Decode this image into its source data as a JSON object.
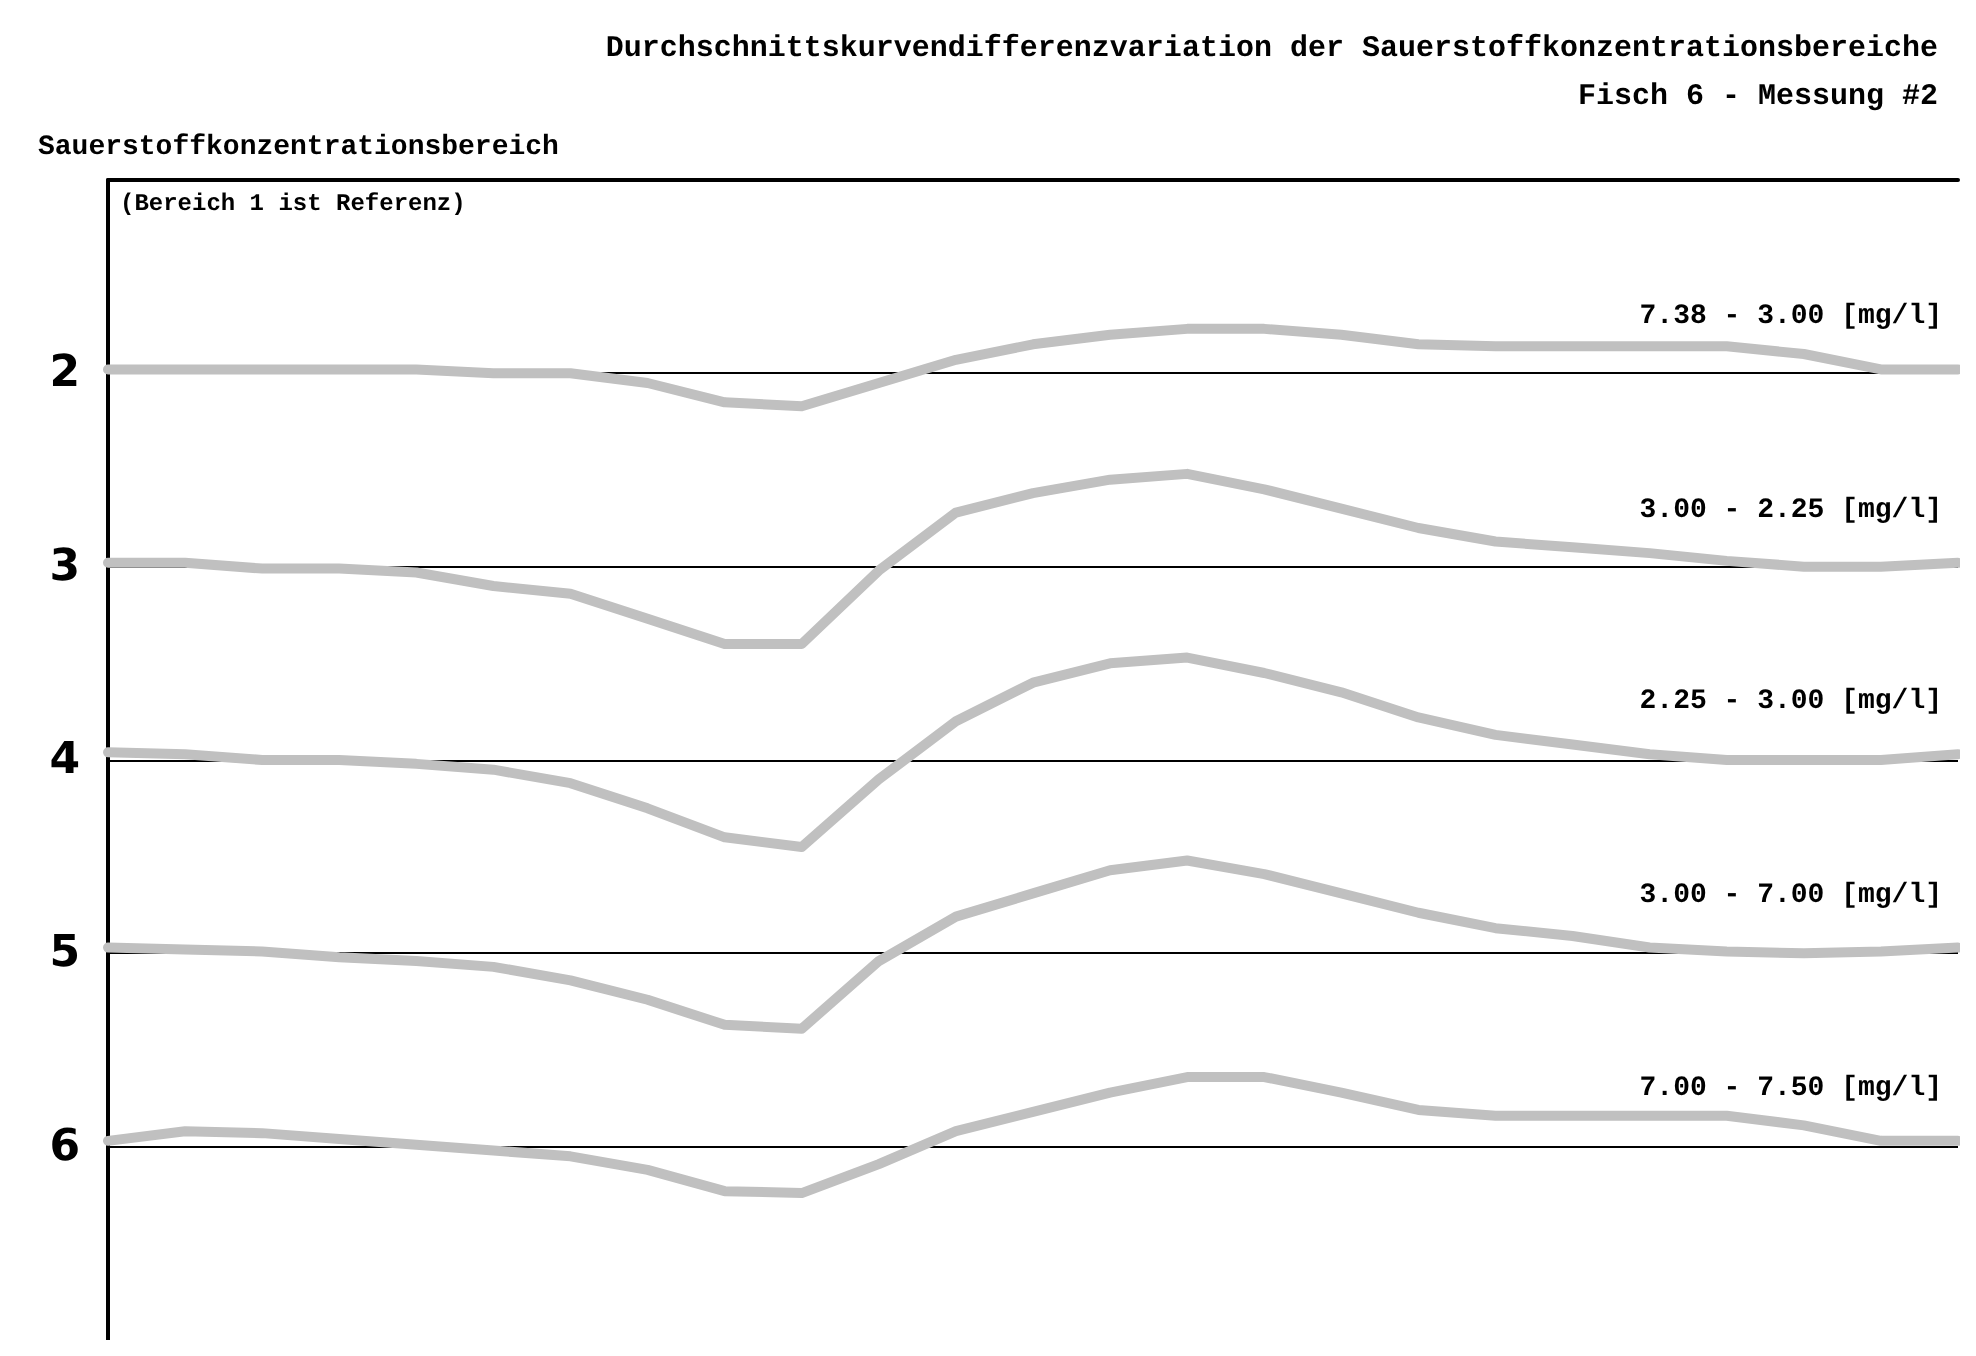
{
  "chart_data": {
    "type": "line",
    "title": "Durchschnittskurvendifferenzvariation der Sauerstoffkonzentrationsbereiche",
    "subtitle": "Fisch 6 - Messung #2",
    "ylabel": "Sauerstoffkonzentrationsbereich",
    "annotations": [
      "(Bereich 1 ist Referenz)"
    ],
    "categories": [
      null,
      null,
      null,
      null,
      null,
      null,
      null,
      null,
      null,
      null,
      null,
      null,
      null,
      null,
      null,
      null,
      null,
      null,
      null,
      null,
      null,
      null,
      null,
      null,
      null
    ],
    "series": [
      {
        "name": "7.38 - 3.00 [mg/l]",
        "color": "#c0c0c0",
        "values": [
          1.98,
          1.98,
          1.98,
          1.98,
          1.98,
          2.0,
          2.0,
          2.05,
          2.15,
          2.17,
          2.05,
          1.93,
          1.85,
          1.8,
          1.77,
          1.77,
          1.8,
          1.85,
          1.86,
          1.86,
          1.86,
          1.86,
          1.9,
          1.98,
          1.98
        ]
      },
      {
        "name": "3.00 - 2.25 [mg/l]",
        "color": "#c0c0c0",
        "values": [
          2.98,
          2.98,
          3.01,
          3.01,
          3.03,
          3.1,
          3.14,
          3.27,
          3.4,
          3.4,
          3.02,
          2.72,
          2.62,
          2.55,
          2.52,
          2.6,
          2.7,
          2.8,
          2.87,
          2.9,
          2.93,
          2.97,
          3.0,
          3.0,
          2.98
        ]
      },
      {
        "name": "2.25 - 3.00 [mg/l]",
        "color": "#c0c0c0",
        "values": [
          3.96,
          3.97,
          4.0,
          4.0,
          4.02,
          4.05,
          4.12,
          4.25,
          4.4,
          4.45,
          4.1,
          3.8,
          3.6,
          3.5,
          3.47,
          3.55,
          3.65,
          3.78,
          3.87,
          3.92,
          3.97,
          4.0,
          4.0,
          4.0,
          3.97
        ]
      },
      {
        "name": "3.00 - 7.00 [mg/l]",
        "color": "#c0c0c0",
        "values": [
          4.97,
          4.98,
          4.99,
          5.02,
          5.04,
          5.07,
          5.14,
          5.24,
          5.37,
          5.39,
          5.04,
          4.81,
          4.69,
          4.57,
          4.52,
          4.59,
          4.69,
          4.79,
          4.87,
          4.91,
          4.97,
          4.99,
          5.0,
          4.99,
          4.97
        ]
      },
      {
        "name": "7.00 - 7.50 [mg/l]",
        "color": "#c0c0c0",
        "values": [
          5.97,
          5.92,
          5.93,
          5.96,
          5.99,
          6.02,
          6.05,
          6.12,
          6.23,
          6.24,
          6.09,
          5.92,
          5.82,
          5.72,
          5.64,
          5.64,
          5.72,
          5.81,
          5.84,
          5.84,
          5.84,
          5.84,
          5.89,
          5.97,
          5.97
        ]
      }
    ],
    "ylim": [
      7,
      1
    ],
    "yticks": [
      2,
      3,
      4,
      5,
      6
    ],
    "grid": "y",
    "legend": false,
    "tick_labels": "y",
    "marker": "none",
    "line_style": "solid"
  }
}
